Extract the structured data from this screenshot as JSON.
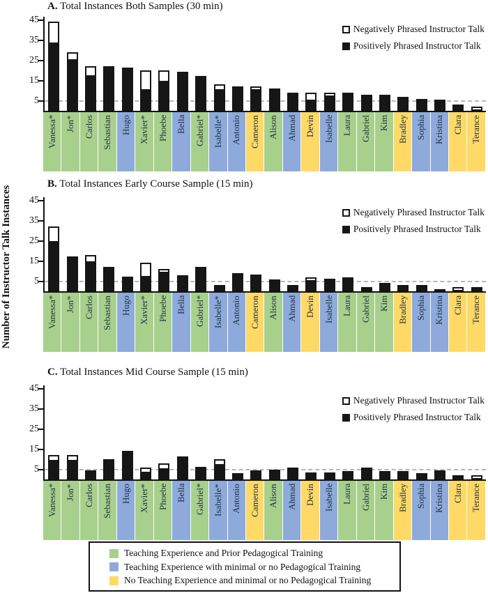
{
  "y_axis": {
    "label": "Number of Instructor Talk Instances",
    "ticks": [
      45,
      35,
      25,
      15,
      5
    ],
    "dashed_gridline_at": 5,
    "max": 45
  },
  "series_legend": {
    "negative_label": "Negatively Phrased Instructor Talk",
    "positive_label": "Positively Phrased Instructor Talk"
  },
  "colors": {
    "positive_bar": "#161616",
    "negative_bar_fill": "#ffffff",
    "green": "#a8d08d",
    "blue": "#8eaadb",
    "yellow": "#ffd966"
  },
  "group_legend": [
    {
      "group": "green",
      "label": "Teaching Experience and Prior Pedagogical Training"
    },
    {
      "group": "blue",
      "label": "Teaching Experience with minimal or no Pedagogical Training"
    },
    {
      "group": "yellow",
      "label": "No Teaching Experience and minimal or no Pedagogical Training"
    }
  ],
  "instructors": [
    {
      "name": "Vanessa*",
      "group": "green"
    },
    {
      "name": "Jon*",
      "group": "green"
    },
    {
      "name": "Carlos",
      "group": "green"
    },
    {
      "name": "Sebastian",
      "group": "green"
    },
    {
      "name": "Hugo",
      "group": "blue"
    },
    {
      "name": "Xavier*",
      "group": "green"
    },
    {
      "name": "Phoebe",
      "group": "green"
    },
    {
      "name": "Bella",
      "group": "blue"
    },
    {
      "name": "Gabriel*",
      "group": "green"
    },
    {
      "name": "Isabelle*",
      "group": "blue"
    },
    {
      "name": "Antonio",
      "group": "blue"
    },
    {
      "name": "Cameron",
      "group": "yellow"
    },
    {
      "name": "Alison",
      "group": "green"
    },
    {
      "name": "Ahmad",
      "group": "blue"
    },
    {
      "name": "Devin",
      "group": "yellow"
    },
    {
      "name": "Isabelle",
      "group": "blue"
    },
    {
      "name": "Laura",
      "group": "green"
    },
    {
      "name": "Gabriel",
      "group": "green"
    },
    {
      "name": "Kim",
      "group": "green"
    },
    {
      "name": "Bradley",
      "group": "yellow"
    },
    {
      "name": "Sophia",
      "group": "blue"
    },
    {
      "name": "Kristina",
      "group": "blue"
    },
    {
      "name": "Clara",
      "group": "yellow"
    },
    {
      "name": "Terance",
      "group": "yellow"
    }
  ],
  "chart_data": [
    {
      "id": "A",
      "type": "bar",
      "stacked": true,
      "title_prefix": "A.",
      "title": "Total Instances Both Samples (30 min)",
      "ylabel": "Number of Instructor Talk Instances",
      "ylim": [
        0,
        45
      ],
      "categories": [
        "Vanessa*",
        "Jon*",
        "Carlos",
        "Sebastian",
        "Hugo",
        "Xavier*",
        "Phoebe",
        "Bella",
        "Gabriel*",
        "Isabelle*",
        "Antonio",
        "Cameron",
        "Alison",
        "Ahmad",
        "Devin",
        "Isabelle",
        "Laura",
        "Gabriel",
        "Kim",
        "Bradley",
        "Sophia",
        "Kristina",
        "Clara",
        "Terance"
      ],
      "series": [
        {
          "name": "Positively Phrased Instructor Talk",
          "values": [
            33,
            25,
            17,
            22,
            20,
            10,
            14,
            18,
            16,
            10,
            12,
            10,
            11,
            9,
            5,
            7,
            9,
            8,
            8,
            7,
            6,
            4,
            3,
            0
          ]
        },
        {
          "name": "Negatively Phrased Instructor Talk",
          "values": [
            11,
            4,
            5,
            0,
            1,
            10,
            6,
            1,
            1,
            3,
            0,
            2,
            0,
            0,
            4,
            2,
            0,
            0,
            0,
            0,
            0,
            1,
            0,
            2
          ]
        }
      ]
    },
    {
      "id": "B",
      "type": "bar",
      "stacked": true,
      "title_prefix": "B.",
      "title": "Total Instances Early Course Sample (15 min)",
      "ylabel": "Number of Instructor Talk Instances",
      "ylim": [
        0,
        45
      ],
      "categories": [
        "Vanessa*",
        "Jon*",
        "Carlos",
        "Sebastian",
        "Hugo",
        "Xavier*",
        "Phoebe",
        "Bella",
        "Gabriel*",
        "Isabelle*",
        "Antonio",
        "Cameron",
        "Alison",
        "Ahmad",
        "Devin",
        "Isabelle",
        "Laura",
        "Gabriel",
        "Kim",
        "Bradley",
        "Sophia",
        "Kristina",
        "Clara",
        "Terance"
      ],
      "series": [
        {
          "name": "Positively Phrased Instructor Talk",
          "values": [
            24,
            16,
            14,
            12,
            6,
            7,
            9,
            8,
            12,
            3,
            9,
            7,
            6,
            3,
            5,
            5,
            7,
            2,
            4,
            3,
            3,
            1,
            0,
            2
          ]
        },
        {
          "name": "Negatively Phrased Instructor Talk",
          "values": [
            8,
            1,
            4,
            0,
            1,
            7,
            2,
            0,
            0,
            0,
            0,
            1,
            0,
            0,
            2,
            1,
            0,
            0,
            0,
            0,
            0,
            0,
            2,
            0
          ]
        }
      ]
    },
    {
      "id": "C",
      "type": "bar",
      "stacked": true,
      "title_prefix": "C.",
      "title": "Total Instances Mid Course Sample (15 min)",
      "ylabel": "Number of Instructor Talk Instances",
      "ylim": [
        0,
        45
      ],
      "categories": [
        "Vanessa*",
        "Jon*",
        "Carlos",
        "Sebastian",
        "Hugo",
        "Xavier*",
        "Phoebe",
        "Bella",
        "Gabriel*",
        "Isabelle*",
        "Antonio",
        "Cameron",
        "Alison",
        "Ahmad",
        "Devin",
        "Isabelle",
        "Laura",
        "Gabriel",
        "Kim",
        "Bradley",
        "Sophia",
        "Kristina",
        "Clara",
        "Terance"
      ],
      "series": [
        {
          "name": "Positively Phrased Instructor Talk",
          "values": [
            9,
            9,
            3,
            10,
            14,
            3,
            5,
            10,
            5,
            7,
            3,
            3,
            5,
            6,
            2,
            2,
            4,
            6,
            4,
            4,
            3,
            3,
            2,
            0
          ]
        },
        {
          "name": "Negatively Phrased Instructor Talk",
          "values": [
            3,
            3,
            1,
            0,
            0,
            3,
            3,
            1,
            1,
            3,
            0,
            1,
            0,
            0,
            1,
            1,
            0,
            0,
            0,
            0,
            0,
            1,
            0,
            2
          ]
        }
      ]
    }
  ]
}
